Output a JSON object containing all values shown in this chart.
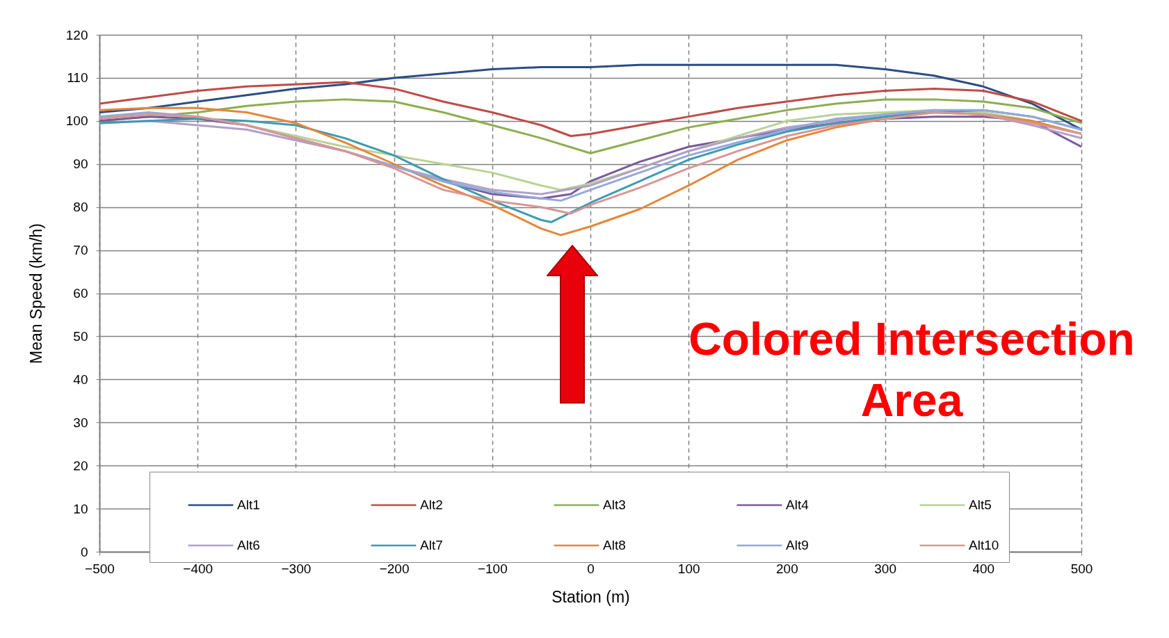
{
  "chart_data": {
    "type": "line",
    "xlabel": "Station (m)",
    "ylabel": "Mean Speed  (km/h)",
    "xlim": [
      -500,
      500
    ],
    "ylim": [
      0,
      120
    ],
    "xticks": [
      -500,
      -400,
      -300,
      -200,
      -100,
      0,
      100,
      200,
      300,
      400,
      500
    ],
    "yticks": [
      0,
      10,
      20,
      30,
      40,
      50,
      60,
      70,
      80,
      90,
      100,
      110,
      120
    ],
    "grid": true,
    "legend": "bottom",
    "annotations": [
      "Colored Intersection Area"
    ],
    "series": [
      {
        "name": "Alt1",
        "color": "#2a4e86",
        "x": [
          -500,
          -450,
          -400,
          -350,
          -300,
          -250,
          -200,
          -150,
          -100,
          -50,
          0,
          50,
          100,
          150,
          200,
          250,
          300,
          350,
          400,
          450,
          500
        ],
        "values": [
          102,
          103,
          104.5,
          106,
          107.5,
          108.5,
          110,
          111,
          112,
          112.5,
          112.5,
          113,
          113,
          113,
          113,
          113,
          112,
          110.5,
          108,
          104,
          98
        ]
      },
      {
        "name": "Alt2",
        "color": "#be4b48",
        "x": [
          -500,
          -450,
          -400,
          -350,
          -300,
          -250,
          -200,
          -150,
          -100,
          -50,
          -20,
          0,
          50,
          100,
          150,
          200,
          250,
          300,
          350,
          400,
          450,
          500
        ],
        "values": [
          104,
          105.5,
          107,
          108,
          108.5,
          109,
          107.5,
          104.5,
          102,
          99,
          96.5,
          97,
          99,
          101,
          103,
          104.5,
          106,
          107,
          107.5,
          107,
          104.5,
          100
        ]
      },
      {
        "name": "Alt3",
        "color": "#8cae4e",
        "x": [
          -500,
          -450,
          -400,
          -350,
          -300,
          -250,
          -200,
          -150,
          -100,
          -50,
          0,
          50,
          100,
          150,
          200,
          250,
          300,
          350,
          400,
          450,
          500
        ],
        "values": [
          100,
          101,
          102,
          103.5,
          104.5,
          105,
          104.5,
          102,
          99,
          96,
          92.5,
          95.5,
          98.5,
          100.5,
          102.5,
          104,
          105,
          105,
          104.5,
          103,
          99.5
        ]
      },
      {
        "name": "Alt4",
        "color": "#7a5a9c",
        "x": [
          -500,
          -450,
          -400,
          -350,
          -300,
          -250,
          -200,
          -150,
          -100,
          -50,
          -20,
          0,
          50,
          100,
          150,
          200,
          250,
          300,
          350,
          400,
          450,
          500
        ],
        "values": [
          100,
          101,
          100.5,
          99,
          96,
          93,
          89.5,
          86,
          83,
          82,
          83,
          86,
          90.5,
          94,
          96,
          98,
          99.5,
          100.5,
          101,
          101,
          100,
          94
        ]
      },
      {
        "name": "Alt5",
        "color": "#b9d394",
        "x": [
          -500,
          -450,
          -400,
          -350,
          -300,
          -250,
          -200,
          -150,
          -100,
          -50,
          -30,
          0,
          50,
          100,
          150,
          200,
          250,
          300,
          350,
          400,
          450,
          500
        ],
        "values": [
          101,
          101.5,
          101,
          99,
          96.5,
          94,
          92,
          90,
          88,
          85,
          84,
          85.5,
          89,
          93,
          96.5,
          100,
          101.5,
          102,
          102.5,
          102,
          100,
          97
        ]
      },
      {
        "name": "Alt6",
        "color": "#b1a0c7",
        "x": [
          -500,
          -450,
          -400,
          -350,
          -300,
          -250,
          -200,
          -150,
          -100,
          -50,
          0,
          50,
          100,
          150,
          200,
          250,
          300,
          350,
          400,
          450,
          500
        ],
        "values": [
          99.5,
          100,
          99,
          98,
          95.5,
          93,
          89.5,
          86.5,
          84,
          83,
          85,
          89,
          93,
          96,
          98.5,
          100,
          101.5,
          102,
          101.5,
          99,
          96
        ]
      },
      {
        "name": "Alt7",
        "color": "#3e9bb0",
        "x": [
          -500,
          -450,
          -400,
          -350,
          -300,
          -250,
          -200,
          -150,
          -100,
          -50,
          -40,
          0,
          50,
          100,
          150,
          200,
          250,
          300,
          350,
          400,
          450,
          500
        ],
        "values": [
          99.5,
          100,
          100.5,
          100,
          99,
          96,
          92,
          86.5,
          81.5,
          77,
          76.5,
          81,
          86,
          91,
          94.5,
          97.5,
          99.5,
          101,
          102,
          102.5,
          101,
          98
        ]
      },
      {
        "name": "Alt8",
        "color": "#e6863a",
        "x": [
          -500,
          -450,
          -400,
          -350,
          -300,
          -250,
          -200,
          -150,
          -100,
          -50,
          -30,
          0,
          50,
          100,
          150,
          200,
          250,
          300,
          350,
          400,
          450,
          500
        ],
        "values": [
          102.5,
          103,
          103,
          102,
          99.5,
          95,
          90,
          85,
          80.5,
          75,
          73.5,
          75.5,
          79.5,
          85,
          91,
          95.5,
          98.5,
          100.5,
          102,
          101.5,
          100,
          97
        ]
      },
      {
        "name": "Alt9",
        "color": "#93a9d8",
        "x": [
          -500,
          -450,
          -400,
          -350,
          -300,
          -250,
          -200,
          -150,
          -100,
          -50,
          -30,
          0,
          50,
          100,
          150,
          200,
          250,
          300,
          350,
          400,
          450,
          500
        ],
        "values": [
          101,
          102,
          101,
          99,
          96,
          93,
          89.5,
          86,
          83.5,
          82,
          81.5,
          84,
          88,
          92,
          95,
          98,
          100.5,
          101.5,
          102.5,
          102.5,
          101,
          98
        ]
      },
      {
        "name": "Alt10",
        "color": "#d99694",
        "x": [
          -500,
          -450,
          -400,
          -350,
          -300,
          -250,
          -200,
          -150,
          -100,
          -50,
          -20,
          0,
          50,
          100,
          150,
          200,
          250,
          300,
          350,
          400,
          450,
          500
        ],
        "values": [
          100.5,
          101.5,
          101,
          99,
          96,
          93,
          89,
          84,
          81.5,
          80,
          78.5,
          80.5,
          84.5,
          89,
          93,
          96.5,
          99,
          100.5,
          102,
          101.5,
          99.5,
          97
        ]
      }
    ]
  }
}
